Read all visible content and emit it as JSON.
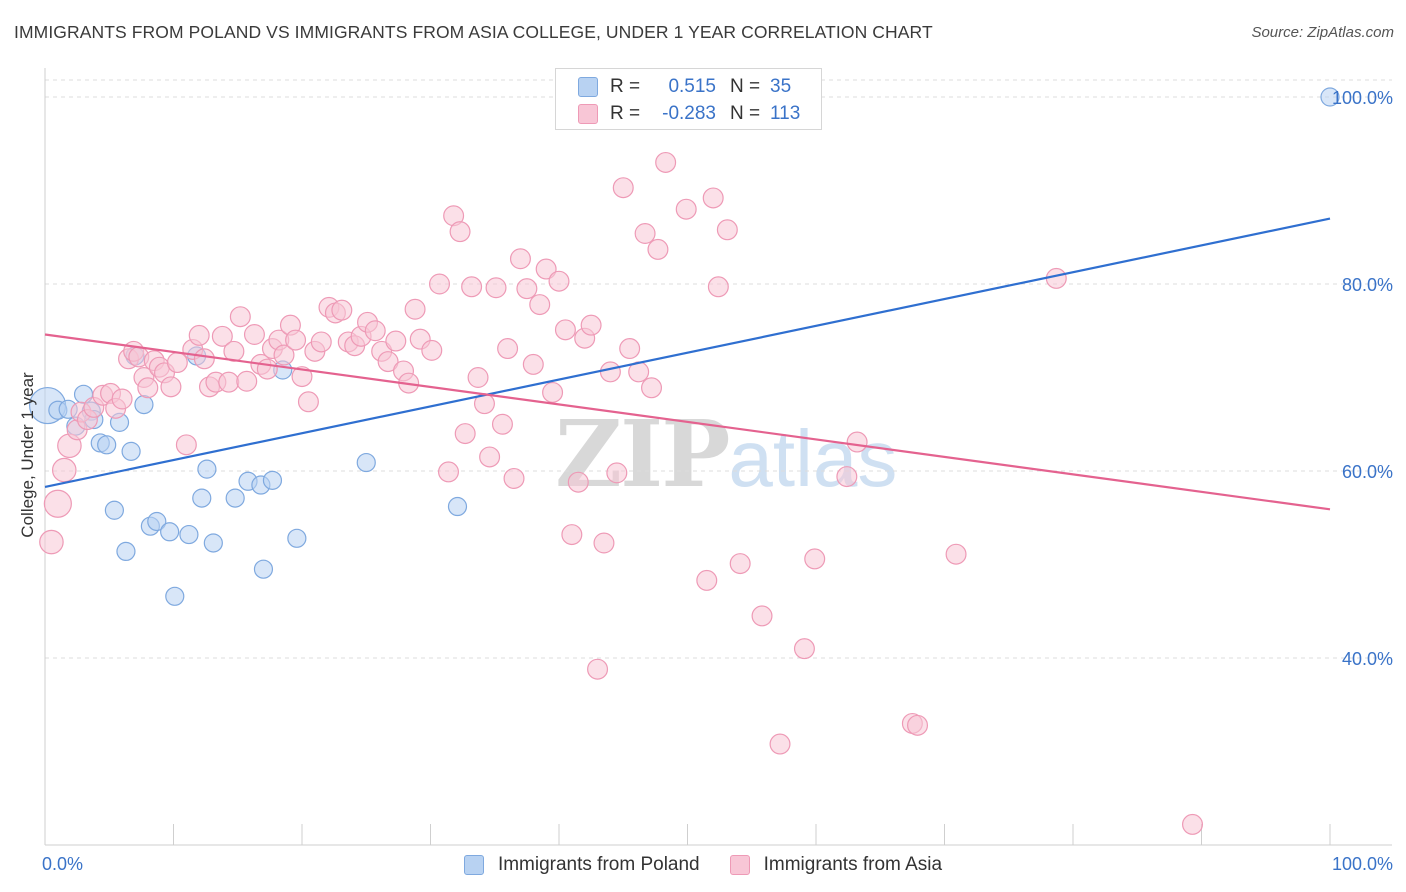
{
  "title": "IMMIGRANTS FROM POLAND VS IMMIGRANTS FROM ASIA COLLEGE, UNDER 1 YEAR CORRELATION CHART",
  "source": "Source: ZipAtlas.com",
  "watermark": {
    "zip": "ZIP",
    "atlas": "atlas"
  },
  "colors": {
    "poland_fill": "#b8d2f2",
    "poland_stroke": "#7fa9df",
    "poland_line": "#2f6fd0",
    "asia_fill": "#f8c6d6",
    "asia_stroke": "#ee9ab6",
    "asia_line": "#e4628f",
    "value_text": "#3a73c8",
    "grid": "#dcdcdc"
  },
  "stats": {
    "poland": {
      "r_label": "R =",
      "r_value": "0.515",
      "n_label": "N =",
      "n_value": "35"
    },
    "asia": {
      "r_label": "R =",
      "r_value": "-0.283",
      "n_label": "N =",
      "n_value": "113"
    }
  },
  "chart_data": {
    "type": "scatter",
    "ylabel": "College, Under 1 year",
    "xlim": [
      0,
      100
    ],
    "ylim": [
      20,
      100
    ],
    "x_tick_labels": [
      "0.0%",
      "100.0%"
    ],
    "y_ticks": [
      {
        "value": 40,
        "label": "40.0%"
      },
      {
        "value": 60,
        "label": "60.0%"
      },
      {
        "value": 80,
        "label": "80.0%"
      },
      {
        "value": 100,
        "label": "100.0%"
      }
    ],
    "legend_position": "bottom",
    "series": [
      {
        "name": "Immigrants from Poland",
        "trend": {
          "x": [
            0,
            100
          ],
          "y": [
            58.3,
            87.0
          ]
        },
        "points": [
          [
            0.2,
            67,
            2
          ],
          [
            1.0,
            66.5,
            1
          ],
          [
            1.8,
            66.6,
            1
          ],
          [
            2.4,
            64.8,
            1
          ],
          [
            3.0,
            68.2,
            1
          ],
          [
            3.6,
            66.4,
            1
          ],
          [
            3.8,
            65.5,
            1
          ],
          [
            4.3,
            63.0,
            1
          ],
          [
            4.8,
            62.8,
            1
          ],
          [
            5.4,
            55.8,
            1
          ],
          [
            5.8,
            65.2,
            1
          ],
          [
            6.3,
            51.4,
            1
          ],
          [
            6.7,
            62.1,
            1
          ],
          [
            7.0,
            72.3,
            1
          ],
          [
            7.7,
            67.1,
            1
          ],
          [
            8.2,
            54.1,
            1
          ],
          [
            8.7,
            54.6,
            1
          ],
          [
            9.7,
            53.5,
            1
          ],
          [
            10.1,
            46.6,
            1
          ],
          [
            11.2,
            53.2,
            1
          ],
          [
            11.8,
            72.3,
            1
          ],
          [
            12.2,
            57.1,
            1
          ],
          [
            12.6,
            60.2,
            1
          ],
          [
            13.1,
            52.3,
            1
          ],
          [
            14.8,
            57.1,
            1
          ],
          [
            15.8,
            58.9,
            1
          ],
          [
            16.8,
            58.5,
            1
          ],
          [
            17.0,
            49.5,
            1
          ],
          [
            17.7,
            59.0,
            1
          ],
          [
            18.5,
            70.8,
            1
          ],
          [
            19.6,
            52.8,
            1
          ],
          [
            25.0,
            60.9,
            1
          ],
          [
            32.1,
            56.2,
            1
          ],
          [
            100.0,
            100.0,
            1
          ]
        ]
      },
      {
        "name": "Immigrants from Asia",
        "trend": {
          "x": [
            0,
            100
          ],
          "y": [
            74.6,
            55.9
          ]
        },
        "points": [
          [
            0.5,
            52.4,
            1.3
          ],
          [
            1.0,
            56.5,
            1.5
          ],
          [
            1.5,
            60.1,
            1.3
          ],
          [
            1.9,
            62.7,
            1.3
          ],
          [
            2.5,
            64.4,
            1.1
          ],
          [
            2.8,
            66.3,
            1.1
          ],
          [
            3.3,
            65.5,
            1.1
          ],
          [
            3.8,
            66.8,
            1.1
          ],
          [
            4.5,
            68.1,
            1.1
          ],
          [
            5.1,
            68.3,
            1.1
          ],
          [
            5.5,
            66.7,
            1.1
          ],
          [
            6.0,
            67.7,
            1.1
          ],
          [
            6.5,
            72.0,
            1.1
          ],
          [
            6.9,
            72.8,
            1.1
          ],
          [
            7.3,
            72.2,
            1.1
          ],
          [
            7.7,
            70.0,
            1.1
          ],
          [
            8.0,
            68.9,
            1.1
          ],
          [
            8.5,
            71.8,
            1.1
          ],
          [
            8.9,
            71.1,
            1.1
          ],
          [
            9.3,
            70.5,
            1.1
          ],
          [
            9.8,
            69.0,
            1.1
          ],
          [
            10.3,
            71.6,
            1.1
          ],
          [
            11.0,
            62.8,
            1.1
          ],
          [
            11.5,
            73.0,
            1.1
          ],
          [
            12.0,
            74.5,
            1.1
          ],
          [
            12.4,
            72.0,
            1.1
          ],
          [
            12.8,
            69.0,
            1.1
          ],
          [
            13.3,
            69.5,
            1.1
          ],
          [
            13.8,
            74.4,
            1.1
          ],
          [
            14.3,
            69.5,
            1.1
          ],
          [
            14.7,
            72.8,
            1.1
          ],
          [
            15.2,
            76.5,
            1.1
          ],
          [
            15.7,
            69.6,
            1.1
          ],
          [
            16.3,
            74.6,
            1.1
          ],
          [
            16.8,
            71.4,
            1.1
          ],
          [
            17.3,
            70.9,
            1.1
          ],
          [
            17.7,
            73.1,
            1.1
          ],
          [
            18.2,
            74.0,
            1.1
          ],
          [
            18.6,
            72.4,
            1.1
          ],
          [
            19.1,
            75.6,
            1.1
          ],
          [
            19.5,
            74.0,
            1.1
          ],
          [
            20.0,
            70.1,
            1.1
          ],
          [
            20.5,
            67.4,
            1.1
          ],
          [
            21.0,
            72.8,
            1.1
          ],
          [
            21.5,
            73.8,
            1.1
          ],
          [
            22.1,
            77.5,
            1.1
          ],
          [
            22.6,
            76.9,
            1.1
          ],
          [
            23.1,
            77.2,
            1.1
          ],
          [
            23.6,
            73.8,
            1.1
          ],
          [
            24.1,
            73.4,
            1.1
          ],
          [
            24.6,
            74.4,
            1.1
          ],
          [
            25.1,
            75.9,
            1.1
          ],
          [
            25.7,
            75.0,
            1.1
          ],
          [
            26.2,
            72.8,
            1.1
          ],
          [
            26.7,
            71.7,
            1.1
          ],
          [
            27.3,
            73.9,
            1.1
          ],
          [
            27.9,
            70.7,
            1.1
          ],
          [
            28.3,
            69.4,
            1.1
          ],
          [
            28.8,
            77.3,
            1.1
          ],
          [
            29.2,
            74.1,
            1.1
          ],
          [
            30.1,
            72.9,
            1.1
          ],
          [
            30.7,
            80.0,
            1.1
          ],
          [
            31.4,
            59.9,
            1.1
          ],
          [
            31.8,
            87.3,
            1.1
          ],
          [
            32.3,
            85.6,
            1.1
          ],
          [
            32.7,
            64.0,
            1.1
          ],
          [
            33.2,
            79.7,
            1.1
          ],
          [
            33.7,
            70.0,
            1.1
          ],
          [
            34.2,
            67.2,
            1.1
          ],
          [
            34.6,
            61.5,
            1.1
          ],
          [
            35.1,
            79.6,
            1.1
          ],
          [
            35.6,
            65.0,
            1.1
          ],
          [
            36.0,
            73.1,
            1.1
          ],
          [
            36.5,
            59.2,
            1.1
          ],
          [
            37.0,
            82.7,
            1.1
          ],
          [
            37.5,
            79.5,
            1.1
          ],
          [
            38.0,
            71.4,
            1.1
          ],
          [
            38.5,
            77.8,
            1.1
          ],
          [
            39.0,
            81.6,
            1.1
          ],
          [
            39.5,
            68.4,
            1.1
          ],
          [
            40.0,
            80.3,
            1.1
          ],
          [
            40.5,
            75.1,
            1.1
          ],
          [
            41.0,
            53.2,
            1.1
          ],
          [
            41.5,
            58.8,
            1.1
          ],
          [
            42.0,
            74.2,
            1.1
          ],
          [
            42.5,
            75.6,
            1.1
          ],
          [
            43.0,
            38.8,
            1.1
          ],
          [
            43.5,
            52.3,
            1.1
          ],
          [
            44.0,
            70.6,
            1.1
          ],
          [
            44.5,
            59.8,
            1.1
          ],
          [
            45.0,
            90.3,
            1.1
          ],
          [
            45.5,
            73.1,
            1.1
          ],
          [
            46.2,
            70.6,
            1.1
          ],
          [
            46.7,
            85.4,
            1.1
          ],
          [
            47.2,
            68.9,
            1.1
          ],
          [
            47.7,
            83.7,
            1.1
          ],
          [
            48.3,
            93.0,
            1.1
          ],
          [
            49.9,
            88.0,
            1.1
          ],
          [
            51.5,
            48.3,
            1.1
          ],
          [
            52.0,
            89.2,
            1.1
          ],
          [
            52.4,
            79.7,
            1.1
          ],
          [
            53.1,
            85.8,
            1.1
          ],
          [
            54.1,
            50.1,
            1.1
          ],
          [
            55.8,
            44.5,
            1.1
          ],
          [
            57.2,
            30.8,
            1.1
          ],
          [
            59.1,
            41.0,
            1.1
          ],
          [
            59.9,
            50.6,
            1.1
          ],
          [
            62.4,
            59.4,
            1.1
          ],
          [
            63.2,
            63.1,
            1.1
          ],
          [
            67.5,
            33.0,
            1.1
          ],
          [
            67.9,
            32.8,
            1.1
          ],
          [
            70.9,
            51.1,
            1.1
          ],
          [
            78.7,
            80.6,
            1.1
          ],
          [
            89.3,
            22.2,
            1.1
          ]
        ]
      }
    ]
  }
}
